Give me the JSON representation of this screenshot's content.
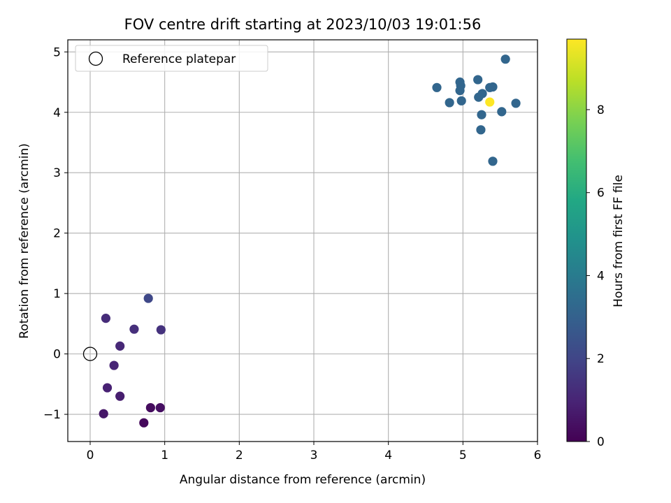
{
  "chart_data": {
    "type": "scatter",
    "title": "FOV centre drift starting at 2023/10/03 19:01:56",
    "xlabel": "Angular distance from reference (arcmin)",
    "ylabel": "Rotation from reference (arcmin)",
    "xlim": [
      -0.3,
      6.0
    ],
    "ylim": [
      -1.45,
      5.2
    ],
    "x_ticks": [
      0,
      1,
      2,
      3,
      4,
      5,
      6
    ],
    "y_ticks": [
      -1,
      0,
      1,
      2,
      3,
      4,
      5
    ],
    "x_tick_labels": [
      "0",
      "1",
      "2",
      "3",
      "4",
      "5",
      "6"
    ],
    "y_tick_labels": [
      "−1",
      "0",
      "1",
      "2",
      "3",
      "4",
      "5"
    ],
    "grid": true,
    "legend": {
      "placement": "top-left",
      "entries": [
        {
          "label": "Reference platepar",
          "marker": "open-circle"
        }
      ]
    },
    "reference_point": {
      "x": 0.0,
      "y": 0.0
    },
    "colorbar": {
      "label": "Hours from first FF file",
      "colormap": "viridis",
      "range": [
        0,
        9.7
      ],
      "ticks": [
        0,
        2,
        4,
        6,
        8
      ],
      "tick_labels": [
        "0",
        "2",
        "4",
        "6",
        "8"
      ]
    },
    "points": [
      {
        "x": 0.72,
        "y": -1.14,
        "c": 0.2
      },
      {
        "x": 0.81,
        "y": -0.89,
        "c": 0.3
      },
      {
        "x": 0.94,
        "y": -0.89,
        "c": 0.4
      },
      {
        "x": 0.18,
        "y": -0.99,
        "c": 0.6
      },
      {
        "x": 0.4,
        "y": -0.7,
        "c": 0.8
      },
      {
        "x": 0.23,
        "y": -0.56,
        "c": 0.9
      },
      {
        "x": 0.32,
        "y": -0.19,
        "c": 1.0
      },
      {
        "x": 0.4,
        "y": 0.13,
        "c": 1.1
      },
      {
        "x": 0.21,
        "y": 0.59,
        "c": 1.2
      },
      {
        "x": 0.59,
        "y": 0.41,
        "c": 1.3
      },
      {
        "x": 0.95,
        "y": 0.4,
        "c": 1.4
      },
      {
        "x": 0.78,
        "y": 0.92,
        "c": 2.1
      },
      {
        "x": 4.65,
        "y": 4.41,
        "c": 3.2
      },
      {
        "x": 4.82,
        "y": 4.16,
        "c": 3.2
      },
      {
        "x": 4.96,
        "y": 4.5,
        "c": 3.2
      },
      {
        "x": 4.96,
        "y": 4.36,
        "c": 3.2
      },
      {
        "x": 4.97,
        "y": 4.44,
        "c": 3.2
      },
      {
        "x": 4.98,
        "y": 4.19,
        "c": 3.2
      },
      {
        "x": 5.2,
        "y": 4.54,
        "c": 3.2
      },
      {
        "x": 5.21,
        "y": 4.25,
        "c": 3.2
      },
      {
        "x": 5.26,
        "y": 4.31,
        "c": 3.2
      },
      {
        "x": 5.36,
        "y": 4.41,
        "c": 3.2
      },
      {
        "x": 5.4,
        "y": 4.42,
        "c": 3.2
      },
      {
        "x": 5.25,
        "y": 3.96,
        "c": 3.2
      },
      {
        "x": 5.24,
        "y": 3.71,
        "c": 3.2
      },
      {
        "x": 5.52,
        "y": 4.01,
        "c": 3.2
      },
      {
        "x": 5.57,
        "y": 4.88,
        "c": 3.2
      },
      {
        "x": 5.71,
        "y": 4.15,
        "c": 3.2
      },
      {
        "x": 5.4,
        "y": 3.19,
        "c": 3.2
      },
      {
        "x": 5.36,
        "y": 4.17,
        "c": 9.7
      }
    ]
  }
}
